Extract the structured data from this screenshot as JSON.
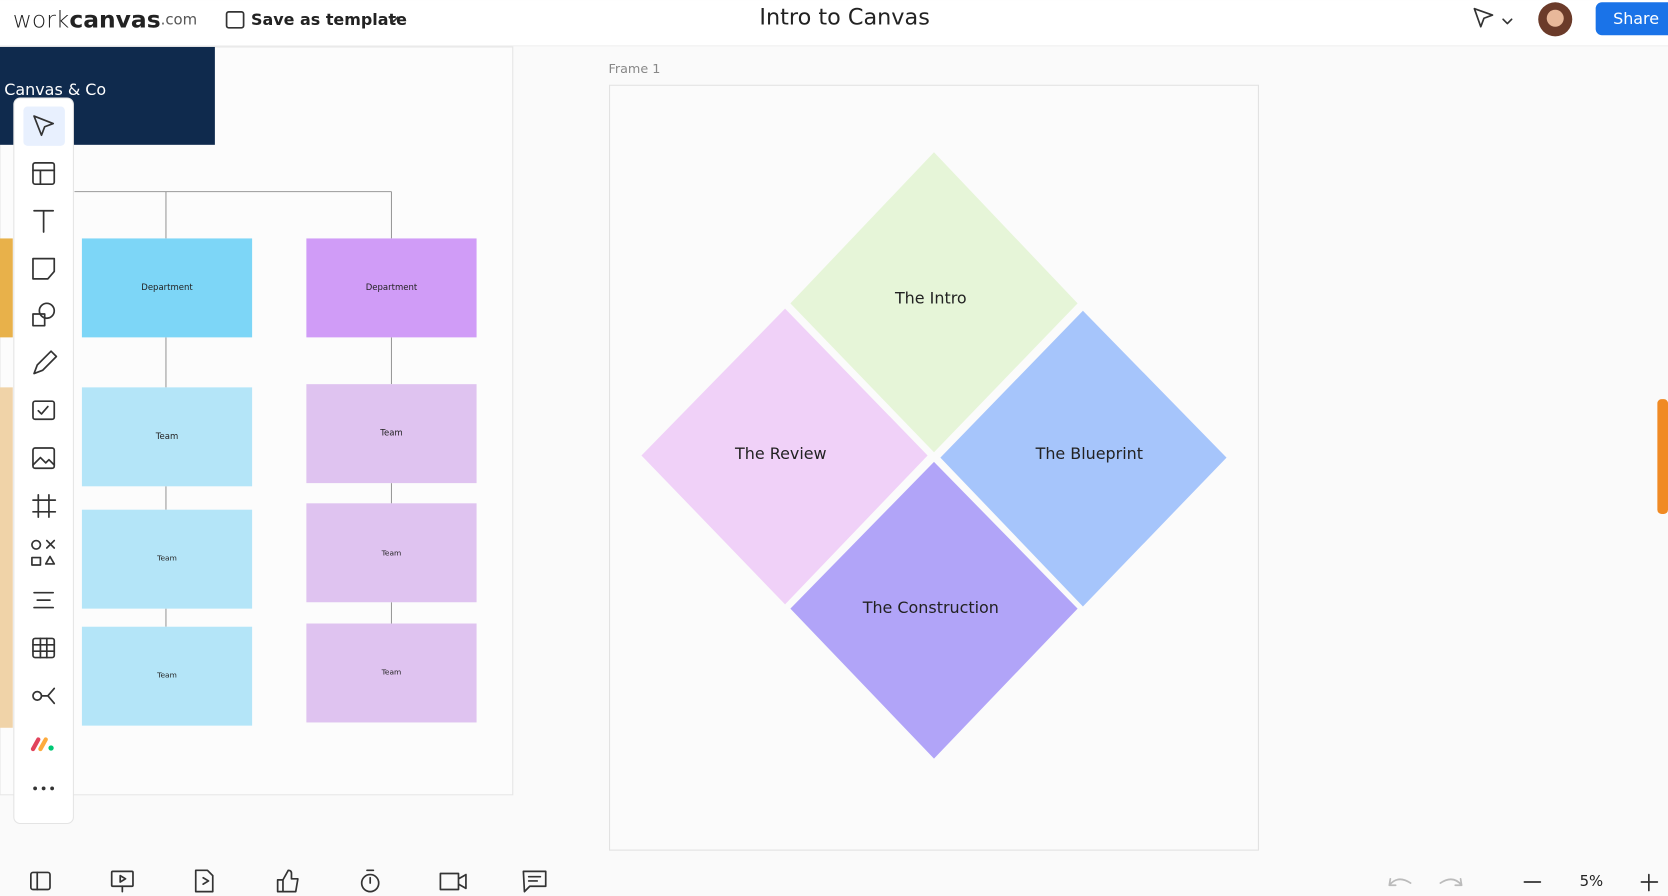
{
  "header": {
    "logo_work": "work",
    "logo_canvas": "canvas",
    "logo_suffix": ".com",
    "save_template": "Save as template",
    "title": "Intro to Canvas",
    "share": "Share"
  },
  "board": {
    "banner": "Canvas & Co",
    "departments": [
      "Department",
      "Department"
    ],
    "teams_left": [
      "Team",
      "Team",
      "Team"
    ],
    "teams_right": [
      "Team",
      "Team",
      "Team"
    ]
  },
  "frame": {
    "label": "Frame 1",
    "sections": [
      "The Intro",
      "The Review",
      "The Blueprint",
      "The Construction"
    ]
  },
  "footer": {
    "zoom": "5%"
  }
}
